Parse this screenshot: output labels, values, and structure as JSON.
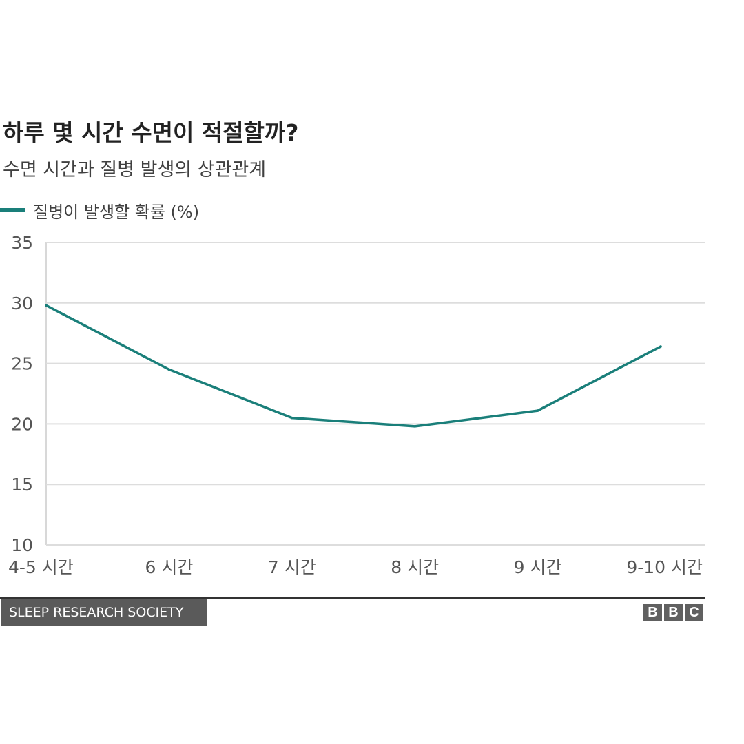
{
  "chart_data": {
    "type": "line",
    "title": "하루 몇 시간 수면이 적절할까?",
    "subtitle": "수면 시간과 질병 발생의 상관관계",
    "categories": [
      "4-5 시간",
      "6 시간",
      "7 시간",
      "8 시간",
      "9 시간",
      "9-10 시간"
    ],
    "series": [
      {
        "name": "질병이 발생할 확률 (%)",
        "values": [
          29.8,
          24.5,
          20.5,
          19.8,
          21.1,
          26.4
        ],
        "color": "#1a7f7a"
      }
    ],
    "ylim": [
      10,
      35
    ],
    "yticks": [
      "10",
      "15",
      "20",
      "25",
      "30",
      "35"
    ],
    "grid": true,
    "legend": "top-left"
  },
  "source": "SLEEP RESEARCH SOCIETY",
  "brand": {
    "letters": [
      "B",
      "B",
      "C"
    ]
  },
  "colors": {
    "line": "#1a7f7a",
    "grid": "#dddddd",
    "axis_text": "#555555"
  }
}
